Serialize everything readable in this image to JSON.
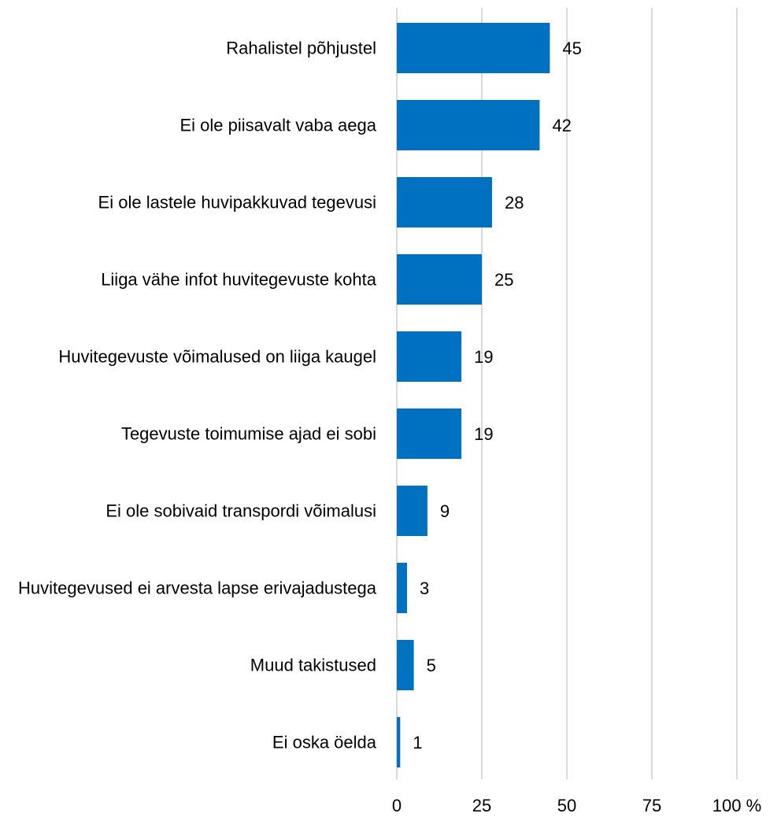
{
  "chart_data": {
    "type": "barh",
    "categories": [
      "Rahalistel põhjustel",
      "Ei ole piisavalt vaba aega",
      "Ei ole lastele huvipakkuvad tegevusi",
      "Liiga vähe infot huvitegevuste kohta",
      "Huvitegevuste võimalused on liiga kaugel",
      "Tegevuste toimumise ajad ei sobi",
      "Ei ole sobivaid transpordi võimalusi",
      "Huvitegevused ei arvesta lapse erivajadustega",
      "Muud takistused",
      "Ei oska öelda"
    ],
    "values": [
      45,
      42,
      28,
      25,
      19,
      19,
      9,
      3,
      5,
      1
    ],
    "color": "#0070c0",
    "xlim": [
      0,
      100
    ],
    "xticks": [
      0,
      25,
      50,
      75,
      {
        "value": 100,
        "label": "100 %"
      }
    ],
    "grid": true
  }
}
